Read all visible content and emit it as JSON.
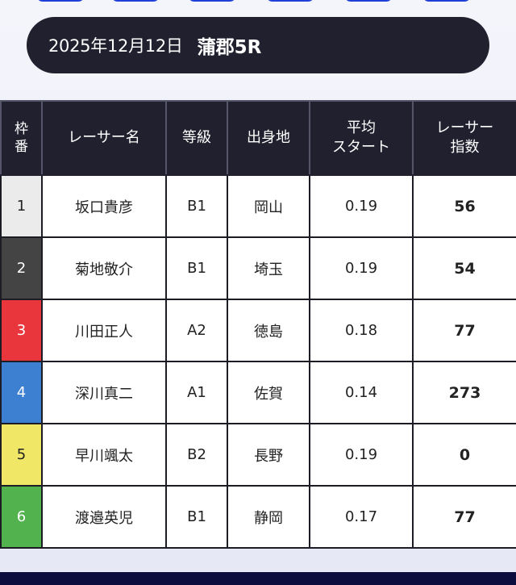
{
  "header": {
    "date": "2025年12月12日",
    "venue_race": "蒲郡5R"
  },
  "table": {
    "columns": {
      "frame": [
        "枠",
        "番"
      ],
      "name": "レーサー名",
      "grade": "等級",
      "hometown": "出身地",
      "avg_start": [
        "平均",
        "スタート"
      ],
      "index": [
        "レーサー",
        "指数"
      ]
    },
    "rows": [
      {
        "frame": "1",
        "name": "坂口貴彦",
        "grade": "B1",
        "hometown": "岡山",
        "avg_start": "0.19",
        "index": "56"
      },
      {
        "frame": "2",
        "name": "菊地敬介",
        "grade": "B1",
        "hometown": "埼玉",
        "avg_start": "0.19",
        "index": "54"
      },
      {
        "frame": "3",
        "name": "川田正人",
        "grade": "A2",
        "hometown": "徳島",
        "avg_start": "0.18",
        "index": "77"
      },
      {
        "frame": "4",
        "name": "深川真二",
        "grade": "A1",
        "hometown": "佐賀",
        "avg_start": "0.14",
        "index": "273"
      },
      {
        "frame": "5",
        "name": "早川颯太",
        "grade": "B2",
        "hometown": "長野",
        "avg_start": "0.19",
        "index": "0"
      },
      {
        "frame": "6",
        "name": "渡邉英児",
        "grade": "B1",
        "hometown": "静岡",
        "avg_start": "0.17",
        "index": "77"
      }
    ]
  },
  "colors": {
    "header_bg": "#20202f",
    "tab_blue": "#1e3fd8",
    "frame_1": "#ebebeb",
    "frame_2": "#444444",
    "frame_3": "#e8363c",
    "frame_4": "#3d7fd0",
    "frame_5": "#efe765",
    "frame_6": "#52b24e"
  }
}
